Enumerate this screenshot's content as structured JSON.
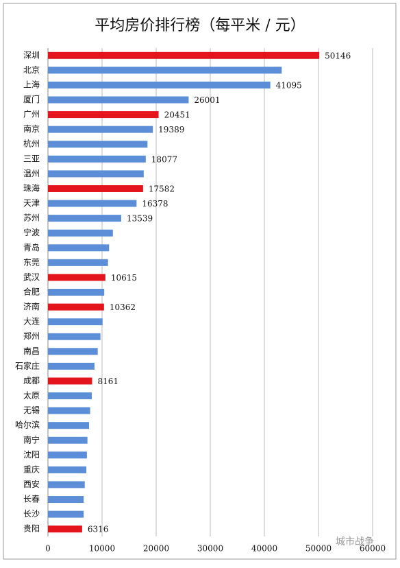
{
  "chart_data": {
    "type": "hbar",
    "title": "平均房价排行榜（每平米 / 元）",
    "categories": [
      "深圳",
      "北京",
      "上海",
      "厦门",
      "广州",
      "南京",
      "杭州",
      "三亚",
      "温州",
      "珠海",
      "天津",
      "苏州",
      "宁波",
      "青岛",
      "东莞",
      "武汉",
      "合肥",
      "济南",
      "大连",
      "郑州",
      "南昌",
      "石家庄",
      "成都",
      "太原",
      "无锡",
      "哈尔滨",
      "南宁",
      "沈阳",
      "重庆",
      "西安",
      "长春",
      "长沙",
      "贵阳"
    ],
    "values": [
      50146,
      43200,
      41095,
      26001,
      20451,
      19389,
      18400,
      18077,
      17700,
      17582,
      16378,
      13539,
      12000,
      11300,
      11100,
      10615,
      10400,
      10362,
      10100,
      9700,
      9200,
      8600,
      8161,
      8100,
      7800,
      7600,
      7300,
      7200,
      7100,
      6800,
      6600,
      6600,
      6316
    ],
    "value_labels": [
      "50146",
      null,
      "41095",
      "26001",
      "20451",
      "19389",
      null,
      "18077",
      null,
      "17582",
      "16378",
      "13539",
      null,
      null,
      null,
      "10615",
      null,
      "10362",
      null,
      null,
      null,
      null,
      "8161",
      null,
      null,
      null,
      null,
      null,
      null,
      null,
      null,
      null,
      "6316"
    ],
    "colors": [
      "#e3141b",
      "#5b8ed6",
      "#5b8ed6",
      "#5b8ed6",
      "#e3141b",
      "#5b8ed6",
      "#5b8ed6",
      "#5b8ed6",
      "#5b8ed6",
      "#e3141b",
      "#5b8ed6",
      "#5b8ed6",
      "#5b8ed6",
      "#5b8ed6",
      "#5b8ed6",
      "#e3141b",
      "#5b8ed6",
      "#e3141b",
      "#5b8ed6",
      "#5b8ed6",
      "#5b8ed6",
      "#5b8ed6",
      "#e3141b",
      "#5b8ed6",
      "#5b8ed6",
      "#5b8ed6",
      "#5b8ed6",
      "#5b8ed6",
      "#5b8ed6",
      "#5b8ed6",
      "#5b8ed6",
      "#5b8ed6",
      "#e3141b"
    ],
    "xlim": [
      0,
      60000
    ],
    "xticks": [
      0,
      10000,
      20000,
      30000,
      40000,
      50000,
      60000
    ],
    "grid": true,
    "watermark": "城市战争"
  }
}
